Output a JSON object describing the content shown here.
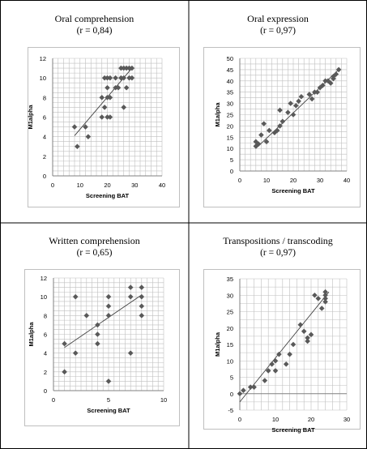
{
  "figure": {
    "panels": [
      {
        "title": "Oral comprehension",
        "subtitle": "(r = 0,84)"
      },
      {
        "title": "Oral expression",
        "subtitle": "(r = 0,97)"
      },
      {
        "title": "Written comprehension",
        "subtitle": "(r = 0,65)"
      },
      {
        "title": "Transpositions / transcoding",
        "subtitle": "(r = 0,97)"
      }
    ]
  },
  "colors": {
    "marker": "#595959",
    "grid": "#bfbfbf",
    "axis": "#808080",
    "trend": "#404040"
  },
  "chart_data": [
    {
      "type": "scatter",
      "title": "Oral comprehension",
      "subtitle": "(r = 0,84)",
      "xlabel": "Screening BAT",
      "ylabel": "M1alpha",
      "xlim": [
        0,
        40
      ],
      "ylim": [
        0,
        12
      ],
      "xticks": [
        0,
        10,
        20,
        30,
        40
      ],
      "yticks": [
        0,
        2,
        4,
        6,
        8,
        10,
        12
      ],
      "xminor": 2,
      "yminor": 0.5,
      "grid": true,
      "trendline": {
        "x": [
          8,
          29
        ],
        "y": [
          4.1,
          11.0
        ]
      },
      "x": [
        8,
        9,
        12,
        13,
        18,
        18,
        19,
        19,
        20,
        20,
        20,
        20,
        21,
        21,
        21,
        23,
        23,
        24,
        25,
        25,
        26,
        26,
        26,
        27,
        27,
        28,
        28,
        29,
        29
      ],
      "y": [
        5,
        3,
        5,
        4,
        6,
        8,
        10,
        7,
        10,
        9,
        6,
        8,
        10,
        6,
        8,
        10,
        9,
        9,
        11,
        10,
        11,
        10,
        7,
        9,
        11,
        10,
        11,
        10,
        11
      ]
    },
    {
      "type": "scatter",
      "title": "Oral expression",
      "subtitle": "(r = 0,97)",
      "xlabel": "Screening BAT",
      "ylabel": "M1alpha",
      "xlim": [
        0,
        40
      ],
      "ylim": [
        0,
        50
      ],
      "xticks": [
        0,
        10,
        20,
        30,
        40
      ],
      "yticks": [
        0,
        5,
        10,
        15,
        20,
        25,
        30,
        35,
        40,
        45,
        50
      ],
      "xminor": 2,
      "yminor": 2.5,
      "grid": true,
      "trendline": {
        "x": [
          6,
          37
        ],
        "y": [
          10.0,
          45.0
        ]
      },
      "x": [
        6,
        6,
        7,
        8,
        9,
        10,
        11,
        13,
        14,
        15,
        15,
        16,
        18,
        19,
        20,
        21,
        22,
        23,
        26,
        27,
        28,
        29,
        30,
        31,
        32,
        33,
        34,
        35,
        35,
        36,
        37
      ],
      "y": [
        11,
        13,
        12,
        16,
        21,
        13,
        18,
        17,
        18,
        27,
        20,
        22,
        26,
        30,
        25,
        29,
        31,
        33,
        34,
        32,
        35,
        35,
        37,
        38,
        40,
        40,
        39,
        41,
        42,
        43,
        45
      ]
    },
    {
      "type": "scatter",
      "title": "Written comprehension",
      "subtitle": "(r = 0,65)",
      "xlabel": "Screening BAT",
      "ylabel": "M1alpha",
      "xlim": [
        0,
        10
      ],
      "ylim": [
        0,
        12
      ],
      "xticks": [
        0,
        5,
        10
      ],
      "yticks": [
        0,
        2,
        4,
        6,
        8,
        10,
        12
      ],
      "xminor": 0.5,
      "yminor": 0.5,
      "grid": true,
      "trendline": {
        "x": [
          1,
          8
        ],
        "y": [
          4.6,
          10.2
        ]
      },
      "x": [
        1,
        1,
        2,
        2,
        3,
        4,
        4,
        4,
        5,
        5,
        5,
        5,
        7,
        7,
        7,
        8,
        8,
        8,
        8
      ],
      "y": [
        5,
        2,
        10,
        4,
        8,
        7,
        6,
        5,
        10,
        9,
        8,
        1,
        11,
        10,
        4,
        11,
        10,
        9,
        8
      ]
    },
    {
      "type": "scatter",
      "title": "Transpositions / transcoding",
      "subtitle": "(r = 0,97)",
      "xlabel": "Screening BAT",
      "ylabel": "M1alpha",
      "xlim": [
        0,
        30
      ],
      "ylim": [
        -5,
        35
      ],
      "xticks": [
        0,
        10,
        20,
        30
      ],
      "yticks": [
        -5,
        0,
        5,
        10,
        15,
        20,
        25,
        30,
        35
      ],
      "xminor": 2,
      "yminor": 2.5,
      "grid": true,
      "trendline": {
        "x": [
          0,
          25
        ],
        "y": [
          -2.5,
          31.0
        ]
      },
      "x": [
        0,
        1,
        3,
        4,
        7,
        8,
        9,
        10,
        10,
        11,
        13,
        14,
        15,
        17,
        18,
        19,
        19,
        20,
        21,
        22,
        23,
        24,
        24,
        24,
        24
      ],
      "y": [
        0,
        1,
        2,
        2,
        4,
        7,
        9,
        10,
        7,
        12,
        9,
        12,
        15,
        21,
        19,
        17,
        16,
        18,
        30,
        29,
        26,
        31,
        30,
        29,
        28
      ]
    }
  ]
}
